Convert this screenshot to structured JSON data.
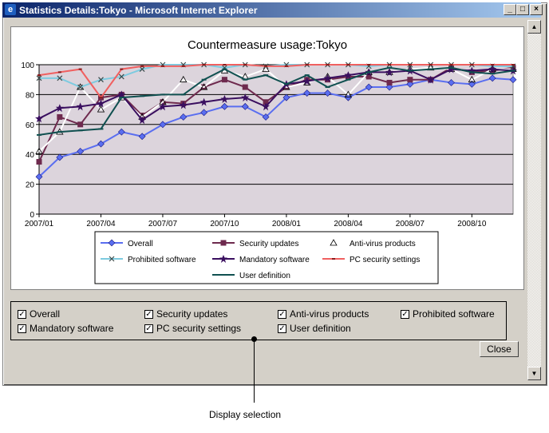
{
  "window": {
    "title": "Statistics Details:Tokyo - Microsoft Internet Explorer",
    "controls": {
      "minimize": "_",
      "maximize": "□",
      "close": "×"
    }
  },
  "chart_data": {
    "type": "line",
    "title": "Countermeasure usage:Tokyo",
    "ylim": [
      0,
      100
    ],
    "yticks": [
      0,
      20,
      40,
      60,
      80,
      100
    ],
    "xticks": [
      "2007/01",
      "2007/04",
      "2007/07",
      "2007/10",
      "2008/01",
      "2008/04",
      "2008/07",
      "2008/10"
    ],
    "legend_position": "bottom",
    "grid": true,
    "series": [
      {
        "name": "Overall",
        "color": "#5a6ef0",
        "marker": "diamond",
        "values": [
          25,
          38,
          42,
          47,
          55,
          52,
          60,
          65,
          68,
          72,
          72,
          65,
          78,
          81,
          81,
          78,
          85,
          85,
          87,
          90,
          88,
          87,
          91,
          90
        ]
      },
      {
        "name": "Security updates",
        "color": "#6e2a4e",
        "marker": "square",
        "values": [
          35,
          65,
          60,
          78,
          80,
          66,
          75,
          74,
          85,
          90,
          85,
          75,
          85,
          90,
          90,
          92,
          92,
          88,
          90,
          90,
          98,
          95,
          96,
          98
        ]
      },
      {
        "name": "Anti-virus products",
        "color": "#ffffff",
        "marker": "triangle",
        "values": [
          42,
          55,
          85,
          70,
          78,
          65,
          75,
          90,
          85,
          96,
          92,
          97,
          85,
          88,
          92,
          80,
          95,
          95,
          97,
          98,
          97,
          90,
          97,
          97
        ]
      },
      {
        "name": "Prohibited software",
        "color": "#7dcbe0",
        "marker": "x",
        "values": [
          91,
          91,
          85,
          90,
          92,
          97,
          100,
          100,
          100,
          98,
          100,
          99,
          100,
          100,
          100,
          100,
          99,
          100,
          100,
          100,
          100,
          100,
          99,
          99
        ]
      },
      {
        "name": "Mandatory software",
        "color": "#3a0f5f",
        "marker": "star",
        "values": [
          64,
          71,
          72,
          74,
          80,
          63,
          72,
          73,
          75,
          77,
          78,
          72,
          87,
          89,
          91,
          93,
          95,
          95,
          96,
          90,
          97,
          96,
          97,
          96
        ]
      },
      {
        "name": "PC security settings",
        "color": "#f06060",
        "marker": "dash",
        "values": [
          93,
          95,
          97,
          78,
          97,
          99,
          99,
          99,
          100,
          100,
          100,
          99,
          99,
          100,
          100,
          100,
          100,
          100,
          100,
          100,
          100,
          100,
          100,
          100
        ]
      },
      {
        "name": "User definition",
        "color": "#105050",
        "marker": "line",
        "values": [
          53,
          55,
          56,
          57,
          78,
          79,
          80,
          80,
          90,
          97,
          90,
          93,
          87,
          93,
          85,
          90,
          95,
          98,
          96,
          97,
          98,
          95,
          94,
          96
        ]
      }
    ]
  },
  "display_selection": {
    "items": [
      {
        "label": "Overall",
        "checked": true
      },
      {
        "label": "Security updates",
        "checked": true
      },
      {
        "label": "Anti-virus products",
        "checked": true
      },
      {
        "label": "Prohibited software",
        "checked": true
      },
      {
        "label": "Mandatory software",
        "checked": true
      },
      {
        "label": "PC security settings",
        "checked": true
      },
      {
        "label": "User definition",
        "checked": true
      }
    ]
  },
  "close_button": {
    "label": "Close"
  },
  "callout": {
    "label": "Display selection"
  }
}
